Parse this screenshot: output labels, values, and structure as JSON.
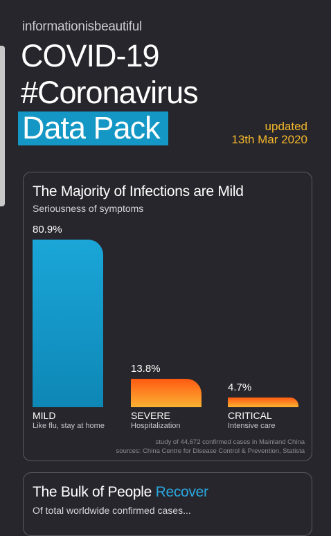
{
  "header": {
    "brand": "informationisbeautiful",
    "title_line1": "COVID-19",
    "title_line2": "#Coronavirus",
    "title_line3": "Data Pack",
    "updated_label": "updated",
    "updated_date": "13th Mar 2020"
  },
  "card1": {
    "title": "The Majority of Infections are Mild",
    "subtitle": "Seriousness of symptoms",
    "footnote_line1": "study of 44,672 confirmed cases in Mainland China",
    "footnote_line2": "sources: China Centre for Disease Control & Prevention, Statista"
  },
  "chart_data": {
    "type": "bar",
    "title": "The Majority of Infections are Mild",
    "subtitle": "Seriousness of symptoms",
    "categories": [
      "MILD",
      "SEVERE",
      "CRITICAL"
    ],
    "category_notes": [
      "Like flu, stay at home",
      "Hospitalization",
      "Intensive care"
    ],
    "values": [
      80.9,
      13.8,
      4.7
    ],
    "value_labels": [
      "80.9%",
      "13.8%",
      "4.7%"
    ],
    "colors": [
      "#1aa6d8",
      "#ff7a1f",
      "#ff7a1f"
    ],
    "grid": false
  },
  "card2": {
    "title_prefix": "The Bulk of People ",
    "title_highlight": "Recover",
    "subtitle": "Of total worldwide confirmed cases..."
  }
}
